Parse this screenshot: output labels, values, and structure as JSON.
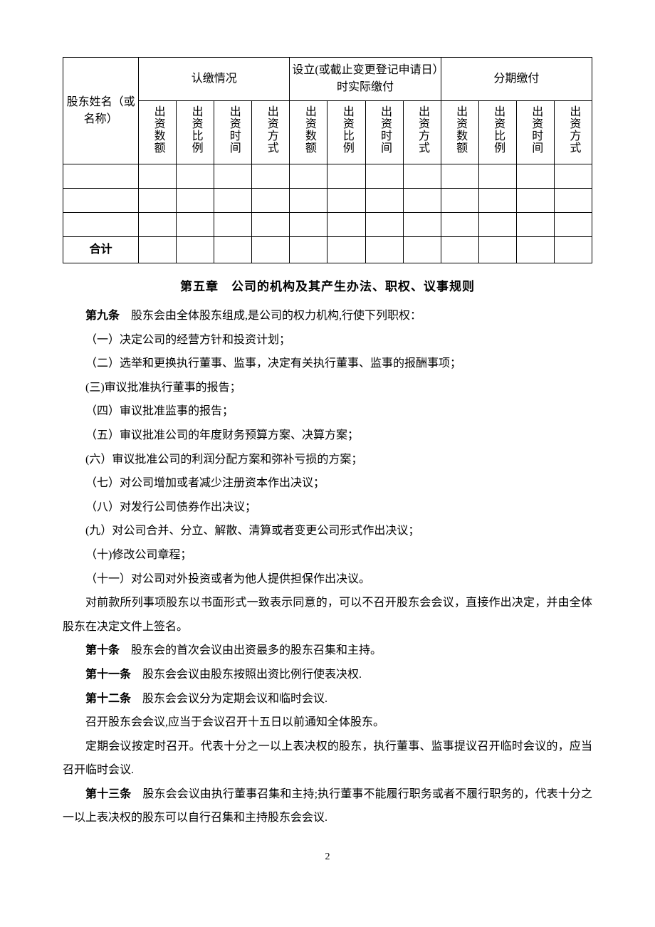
{
  "table": {
    "header_row1": [
      "股东姓名（或名称）",
      "认缴情况",
      "设立(或截止变更登记申请日）时实际缴付",
      "分期缴付"
    ],
    "subheaders": [
      "出资数额",
      "出资比例",
      "出资时间",
      "出资方式"
    ],
    "total_label": "合计"
  },
  "chapter": {
    "title": "第五章　公司的机构及其产生办法、职权、议事规则"
  },
  "articles": {
    "a9_label": "第九条",
    "a9_text": "　股东会由全体股东组成,是公司的权力机构,行使下列职权：",
    "a9_items": [
      "（一）决定公司的经营方针和投资计划；",
      "（二）选举和更换执行董事、监事，决定有关执行董事、监事的报酬事项；",
      "(三)审议批准执行董事的报告；",
      "（四）审议批准监事的报告；",
      "（五）审议批准公司的年度财务预算方案、决算方案；",
      "(六）审议批准公司的利润分配方案和弥补亏损的方案；",
      "（七）对公司增加或者减少注册资本作出决议；",
      "（八）对发行公司债券作出决议；",
      "(九）对公司合并、分立、解散、清算或者变更公司形式作出决议；",
      "（十)修改公司章程；",
      "（十一）对公司对外投资或者为他人提供担保作出决议。"
    ],
    "a9_tail": "对前款所列事项股东以书面形式一致表示同意的，可以不召开股东会会议，直接作出决定，并由全体股东在决定文件上签名。",
    "a10_label": "第十条",
    "a10_text": "　股东会的首次会议由出资最多的股东召集和主持。",
    "a11_label": "第十一条",
    "a11_text": "　股东会会议由股东按照出资比例行使表决权.",
    "a12_label": "第十二条",
    "a12_text": "　股东会会议分为定期会议和临时会议.",
    "a12_p2": "召开股东会会议,应当于会议召开十五日以前通知全体股东。",
    "a12_p3": "定期会议按定时召开。代表十分之一以上表决权的股东，执行董事、监事提议召开临时会议的，应当召开临时会议.",
    "a13_label": "第十三条",
    "a13_text": "　股东会会议由执行董事召集和主持;执行董事不能履行职务或者不履行职务的，代表十分之一以上表决权的股东可以自行召集和主持股东会会议."
  },
  "page_number": "2"
}
